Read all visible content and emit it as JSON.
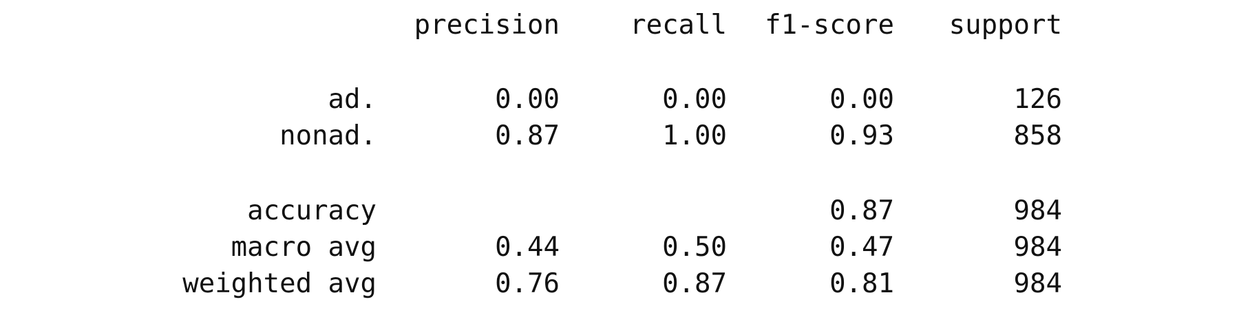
{
  "report": {
    "headers": [
      "precision",
      "recall",
      "f1-score",
      "support"
    ],
    "rows": [
      {
        "label": "ad.",
        "precision": "0.00",
        "recall": "0.00",
        "f1": "0.00",
        "support": "126"
      },
      {
        "label": "nonad.",
        "precision": "0.87",
        "recall": "1.00",
        "f1": "0.93",
        "support": "858"
      },
      {
        "label": "accuracy",
        "precision": "",
        "recall": "",
        "f1": "0.87",
        "support": "984"
      },
      {
        "label": "macro avg",
        "precision": "0.44",
        "recall": "0.50",
        "f1": "0.47",
        "support": "984"
      },
      {
        "label": "weighted avg",
        "precision": "0.76",
        "recall": "0.87",
        "f1": "0.81",
        "support": "984"
      }
    ]
  }
}
